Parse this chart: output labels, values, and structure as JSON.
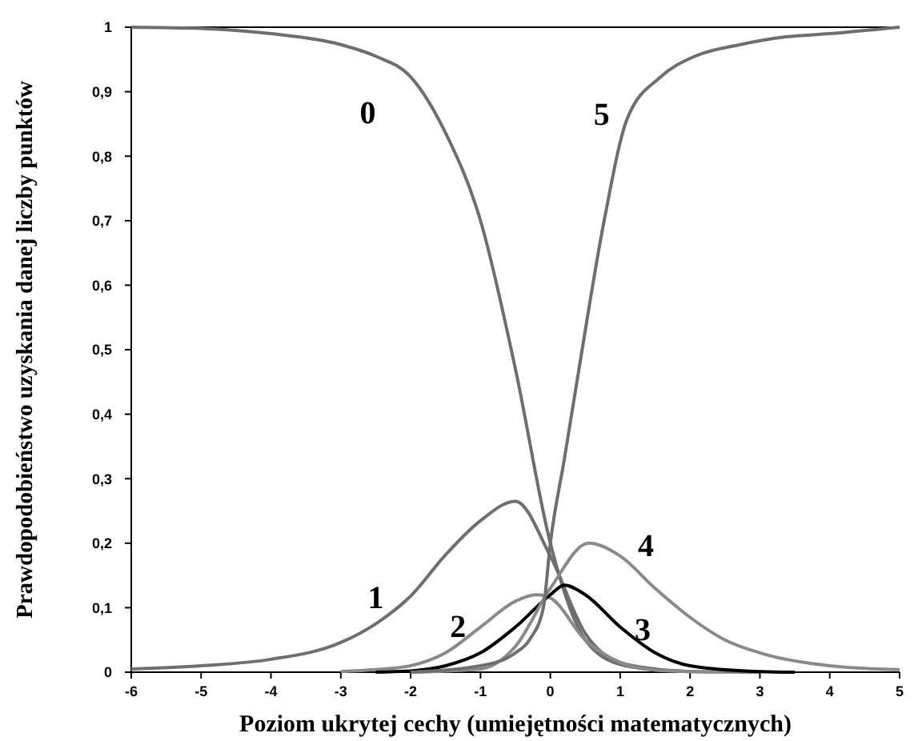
{
  "chart_data": {
    "type": "line",
    "xlabel": "Poziom ukrytej cechy (umiejętności matematycznych)",
    "ylabel": "Prawdopodobieństwo uzyskania danej liczby punktów",
    "xlim": [
      -6,
      5
    ],
    "ylim": [
      0,
      1
    ],
    "xticks": [
      -6,
      -5,
      -4,
      -3,
      -2,
      -1,
      0,
      1,
      2,
      3,
      4,
      5
    ],
    "yticks": [
      0,
      {
        "value": 0.1,
        "label": "0,1"
      },
      {
        "value": 0.2,
        "label": "0,2"
      },
      {
        "value": 0.3,
        "label": "0,3"
      },
      {
        "value": 0.4,
        "label": "0,4"
      },
      {
        "value": 0.5,
        "label": "0,5"
      },
      {
        "value": 0.6,
        "label": "0,6"
      },
      {
        "value": 0.7,
        "label": "0,7"
      },
      {
        "value": 0.8,
        "label": "0,8"
      },
      {
        "value": 0.9,
        "label": "0,9"
      },
      1
    ],
    "grid": false,
    "marker": "none",
    "line_style": "solid",
    "series": [
      {
        "name": "0",
        "color": "#6e6e6e",
        "x": [
          -6,
          -5,
          -4,
          -3,
          -2.5,
          -2,
          -1.5,
          -1,
          -0.5,
          0,
          0.5,
          1,
          1.5,
          2,
          3
        ],
        "values": [
          1,
          0.998,
          0.99,
          0.973,
          0.955,
          0.923,
          0.836,
          0.7,
          0.47,
          0.2,
          0.05,
          0.012,
          0.004,
          0.001,
          0
        ]
      },
      {
        "name": "1",
        "color": "#6e6e6e",
        "x": [
          -6,
          -5,
          -4,
          -3,
          -2.5,
          -2,
          -1.5,
          -1,
          -0.5,
          0,
          0.5,
          1,
          1.5,
          2
        ],
        "values": [
          0.005,
          0.01,
          0.02,
          0.046,
          0.075,
          0.118,
          0.182,
          0.235,
          0.265,
          0.18,
          0.06,
          0.015,
          0.005,
          0.001
        ]
      },
      {
        "name": "2",
        "color": "#8a8a8a",
        "x": [
          -3,
          -2.5,
          -2,
          -1.5,
          -1,
          -0.5,
          -0.2,
          0,
          0.5,
          1,
          1.5,
          2,
          2.5
        ],
        "values": [
          0.001,
          0.004,
          0.01,
          0.03,
          0.07,
          0.11,
          0.12,
          0.115,
          0.05,
          0.015,
          0.003,
          0.001,
          0
        ]
      },
      {
        "name": "3",
        "color": "#000000",
        "x": [
          -2.5,
          -2,
          -1.5,
          -1,
          -0.5,
          0,
          0.2,
          0.5,
          1,
          1.5,
          2,
          3,
          3.5
        ],
        "values": [
          0,
          0.002,
          0.01,
          0.03,
          0.07,
          0.12,
          0.135,
          0.12,
          0.07,
          0.03,
          0.01,
          0.001,
          0
        ]
      },
      {
        "name": "4",
        "color": "#8a8a8a",
        "x": [
          -2,
          -1,
          -0.5,
          0,
          0.55,
          1,
          1.5,
          2,
          2.5,
          3,
          4,
          5
        ],
        "values": [
          0,
          0.005,
          0.04,
          0.13,
          0.2,
          0.18,
          0.13,
          0.085,
          0.05,
          0.03,
          0.01,
          0.004
        ]
      },
      {
        "name": "5",
        "color": "#6e6e6e",
        "x": [
          -2,
          -1,
          -0.5,
          -0.3,
          -0.1,
          0,
          0.2,
          0.41,
          0.77,
          1.1,
          1.58,
          2.07,
          2.72,
          3.37,
          4,
          5
        ],
        "values": [
          0,
          0.01,
          0.03,
          0.05,
          0.1,
          0.2,
          0.33,
          0.47,
          0.7,
          0.858,
          0.923,
          0.955,
          0.973,
          0.985,
          0.99,
          1
        ]
      }
    ]
  }
}
